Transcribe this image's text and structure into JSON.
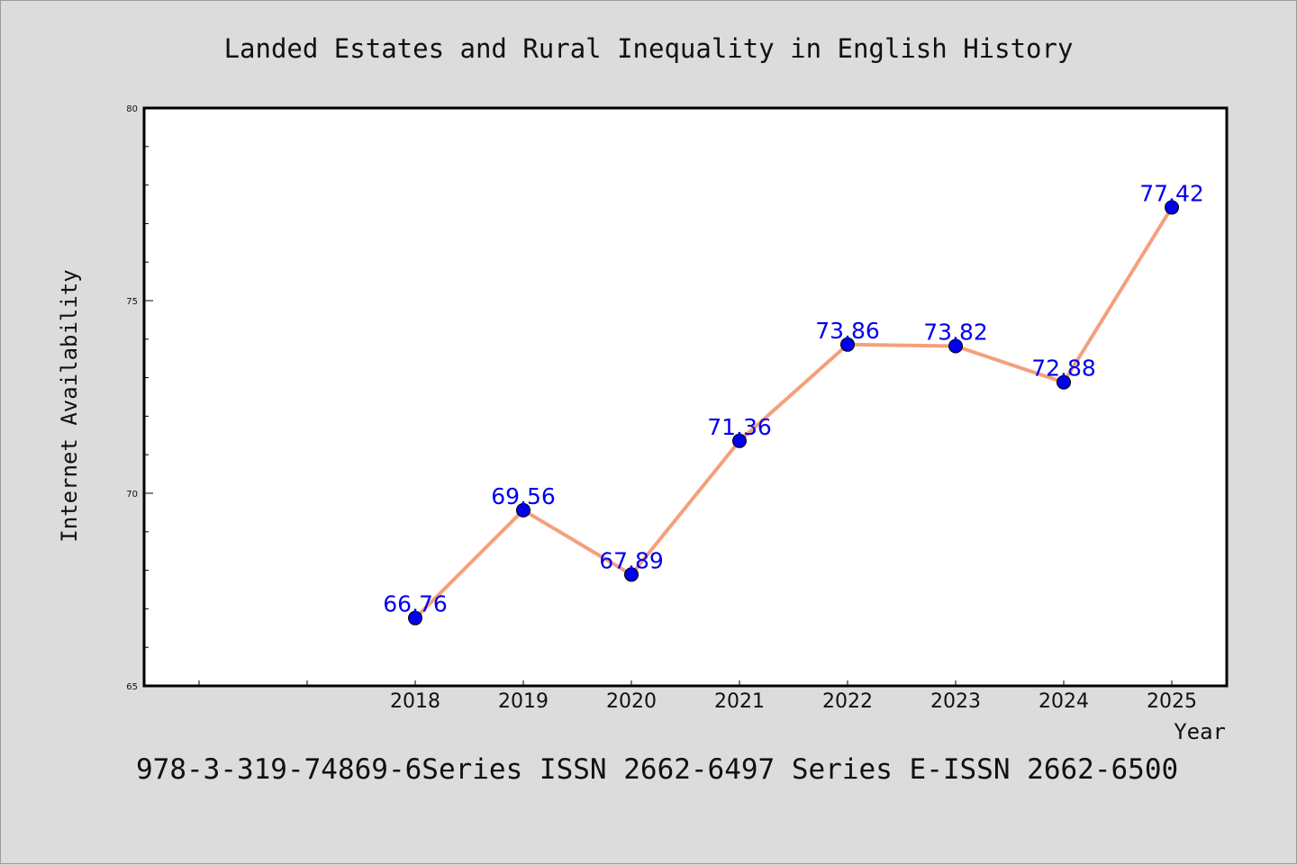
{
  "chart_data": {
    "type": "line",
    "title": "Landed Estates and Rural Inequality in English History",
    "xlabel": "Year",
    "ylabel": "Internet Availability",
    "x": [
      "2018",
      "2019",
      "2020",
      "2021",
      "2022",
      "2023",
      "2024",
      "2025"
    ],
    "series": [
      {
        "values": [
          66.76,
          69.56,
          67.89,
          71.36,
          73.86,
          73.82,
          72.88,
          77.42
        ]
      }
    ],
    "data_labels": [
      "66.76",
      "69.56",
      "67.89",
      "71.36",
      "73.86",
      "73.82",
      "72.88",
      "77.42"
    ],
    "ylim": [
      65,
      80
    ],
    "yticks": [
      65,
      70,
      75,
      80
    ],
    "grid": false,
    "legend": "none",
    "colors": {
      "line": "#f4a07c",
      "marker": "#0000ee",
      "data_label": "#0000ee",
      "plot_background": "#ffffff",
      "page_background": "#dcdcdc"
    }
  },
  "footer": "978-3-319-74869-6Series ISSN 2662-6497 Series E-ISSN 2662-6500"
}
